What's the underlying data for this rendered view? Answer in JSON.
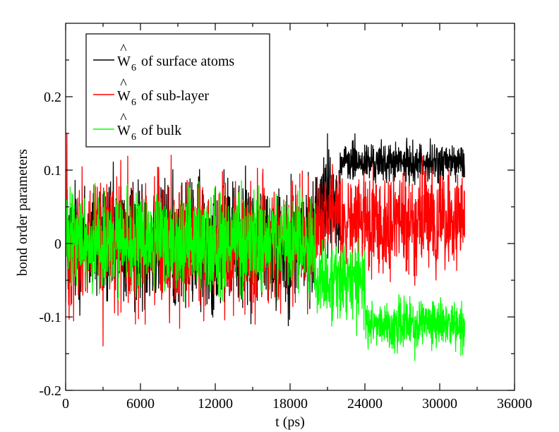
{
  "chart_data": {
    "type": "line",
    "xlabel": "t (ps)",
    "ylabel": "bond order parameters",
    "xlim": [
      0,
      36000
    ],
    "ylim": [
      -0.2,
      0.3
    ],
    "x_ticks": [
      0,
      6000,
      12000,
      18000,
      24000,
      30000,
      36000
    ],
    "x_tick_labels": [
      "0",
      "6000",
      "12000",
      "18000",
      "24000",
      "30000",
      "36000"
    ],
    "y_ticks": [
      -0.2,
      -0.1,
      0,
      0.1,
      0.2
    ],
    "y_tick_labels": [
      "-0.2",
      "-0.1",
      "0",
      "0.1",
      "0.2"
    ],
    "grid": false,
    "legend_position": "top-left",
    "series": [
      {
        "name": "W6 of surface atoms",
        "legend_symbol": "W",
        "legend_hat": "^",
        "legend_sub": "6",
        "legend_rest": "of surface atoms",
        "color": "#000000",
        "x_range": [
          0,
          32000
        ],
        "phases": [
          {
            "t_start": 0,
            "t_end": 20000,
            "mean": 0.0,
            "amplitude": 0.13
          },
          {
            "t_start": 20000,
            "t_end": 22000,
            "mean": 0.06,
            "amplitude": 0.09
          },
          {
            "t_start": 22000,
            "t_end": 32000,
            "mean": 0.11,
            "amplitude": 0.04
          }
        ],
        "spikes": [
          {
            "t": 21000,
            "value": 0.15
          },
          {
            "t": 23200,
            "value": 0.15
          }
        ]
      },
      {
        "name": "W6 of sub-layer",
        "legend_symbol": "W",
        "legend_hat": "^",
        "legend_sub": "6",
        "legend_rest": "of sub-layer",
        "color": "#ff0000",
        "x_range": [
          0,
          32000
        ],
        "phases": [
          {
            "t_start": 0,
            "t_end": 20000,
            "mean": 0.0,
            "amplitude": 0.13
          },
          {
            "t_start": 20000,
            "t_end": 32000,
            "mean": 0.03,
            "amplitude": 0.1
          }
        ],
        "spikes": [
          {
            "t": 100,
            "value": 0.15
          },
          {
            "t": 3000,
            "value": -0.14
          }
        ]
      },
      {
        "name": "W6 of bulk",
        "legend_symbol": "W",
        "legend_hat": "^",
        "legend_sub": "6",
        "legend_rest": "of bulk",
        "color": "#00ff00",
        "x_range": [
          0,
          32000
        ],
        "phases": [
          {
            "t_start": 0,
            "t_end": 20000,
            "mean": 0.0,
            "amplitude": 0.1
          },
          {
            "t_start": 20000,
            "t_end": 24000,
            "mean": -0.05,
            "amplitude": 0.08
          },
          {
            "t_start": 24000,
            "t_end": 32000,
            "mean": -0.11,
            "amplitude": 0.05
          }
        ],
        "spikes": [
          {
            "t": 28000,
            "value": -0.16
          }
        ]
      }
    ]
  }
}
